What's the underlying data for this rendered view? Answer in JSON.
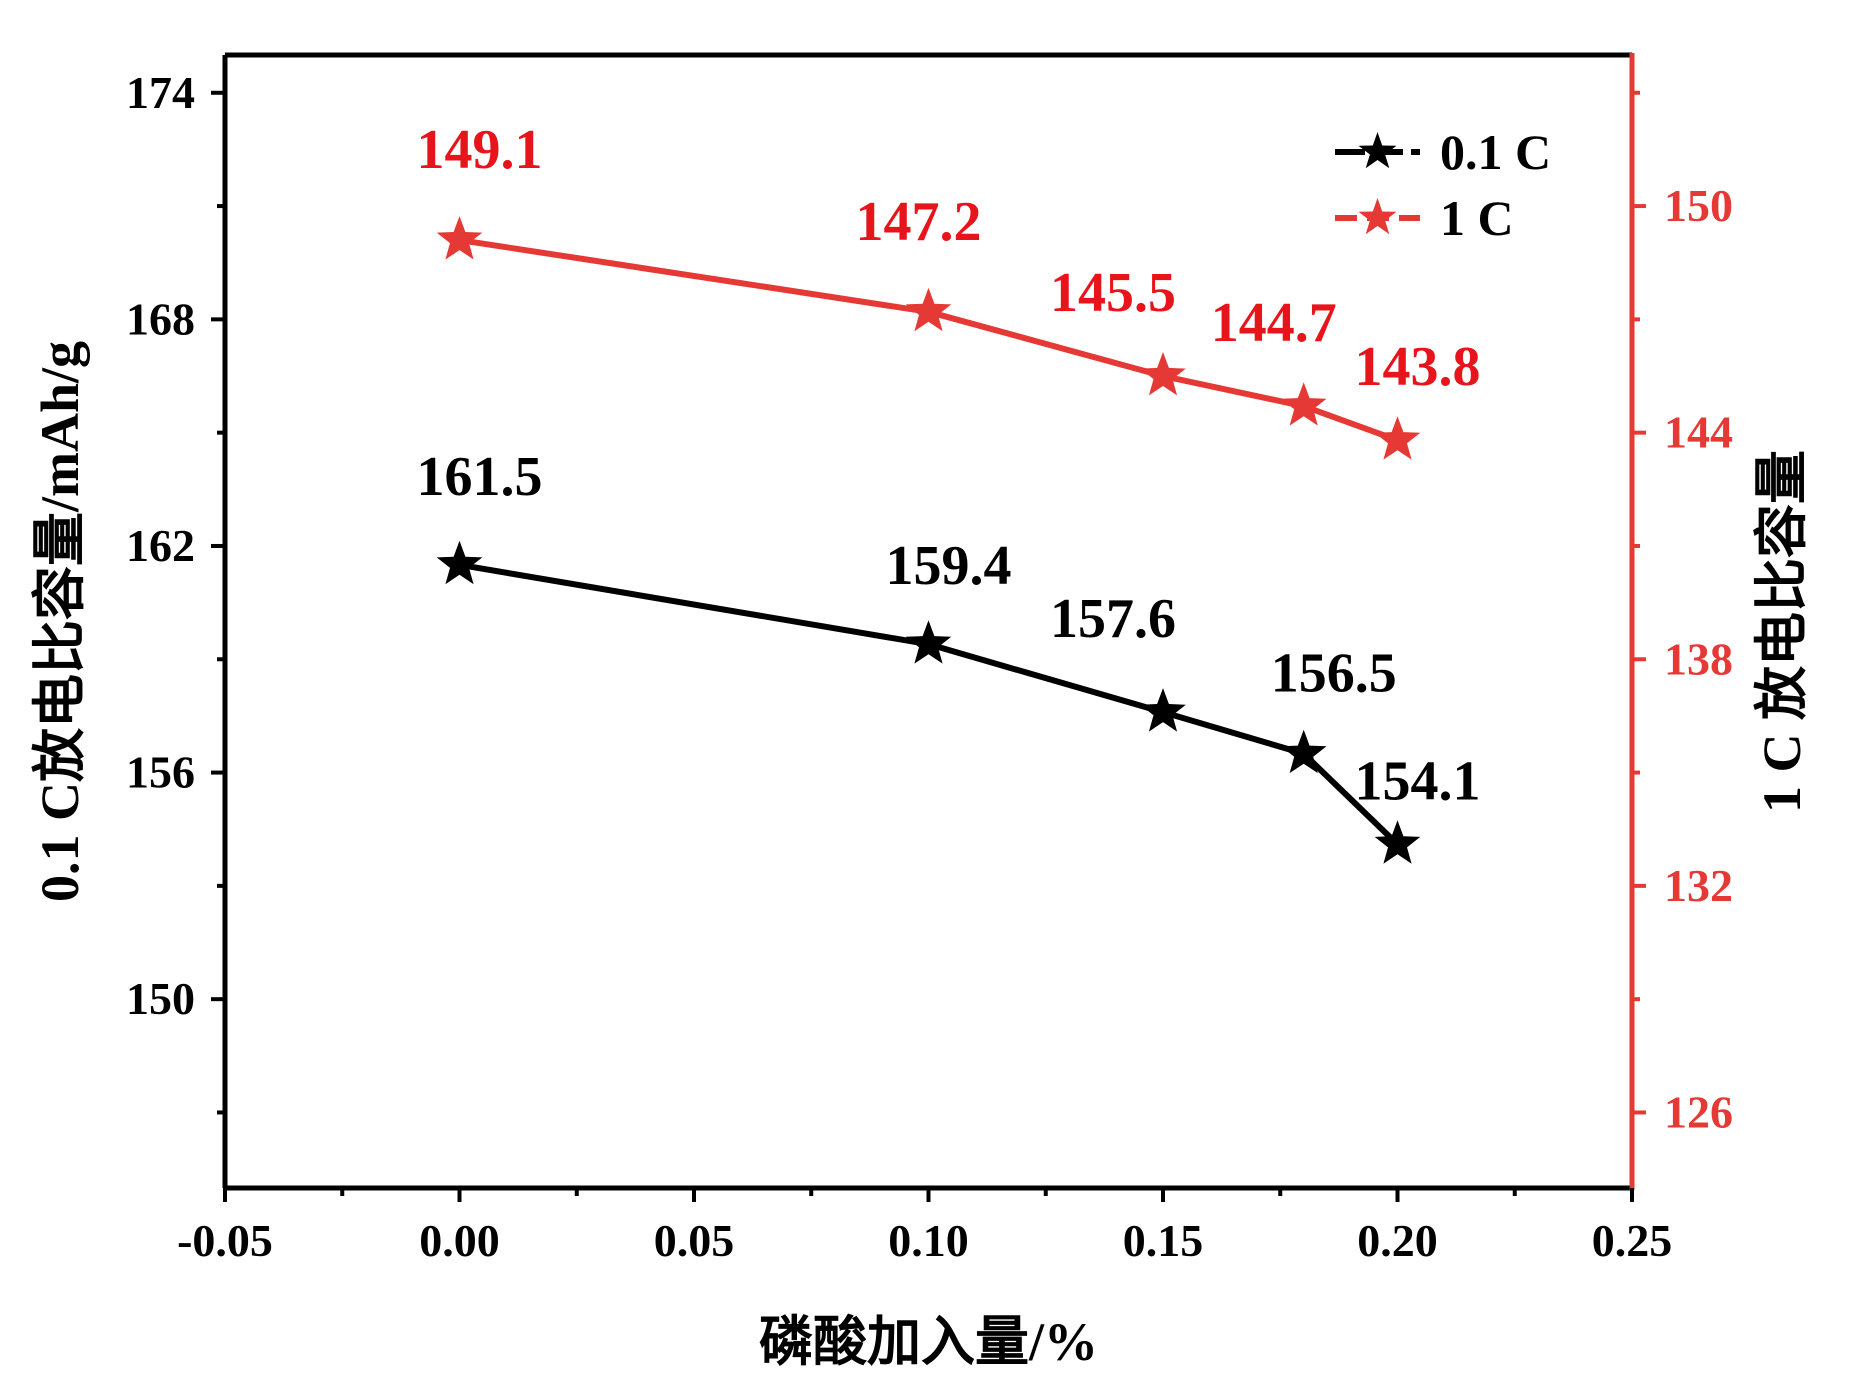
{
  "chart_data": {
    "type": "line",
    "xlabel": "磷酸加入量/%",
    "ylabel_left": "0.1 C放电比容量/mAh/g",
    "ylabel_right": "1 C 放电比容量",
    "xlim": [
      -0.05,
      0.25
    ],
    "ylim_left": [
      145,
      175
    ],
    "ylim_right": [
      124,
      154
    ],
    "x_ticks": [
      "-0.05",
      "0.00",
      "0.05",
      "0.10",
      "0.15",
      "0.20",
      "0.25"
    ],
    "y_ticks_left": [
      "150",
      "156",
      "162",
      "168",
      "174"
    ],
    "y_ticks_right": [
      "126",
      "132",
      "138",
      "144",
      "150"
    ],
    "legend_position": "top-right",
    "series": [
      {
        "name": "0.1 C",
        "axis": "left",
        "color": "#000000",
        "marker": "star",
        "x": [
          0.0,
          0.1,
          0.15,
          0.18,
          0.2
        ],
        "y": [
          161.5,
          159.4,
          157.6,
          156.5,
          154.1
        ],
        "labels": [
          "161.5",
          "159.4",
          "157.6",
          "156.5",
          "154.1"
        ]
      },
      {
        "name": "1 C",
        "axis": "right",
        "color": "#e53935",
        "marker": "star",
        "x": [
          0.0,
          0.1,
          0.15,
          0.18,
          0.2
        ],
        "y": [
          149.1,
          147.2,
          145.5,
          144.7,
          143.8
        ],
        "labels": [
          "149.1",
          "147.2",
          "145.5",
          "144.7",
          "143.8"
        ]
      }
    ]
  },
  "colors": {
    "left_axis": "#000000",
    "right_axis": "#e53935",
    "right_label_text": "#e8141c"
  }
}
